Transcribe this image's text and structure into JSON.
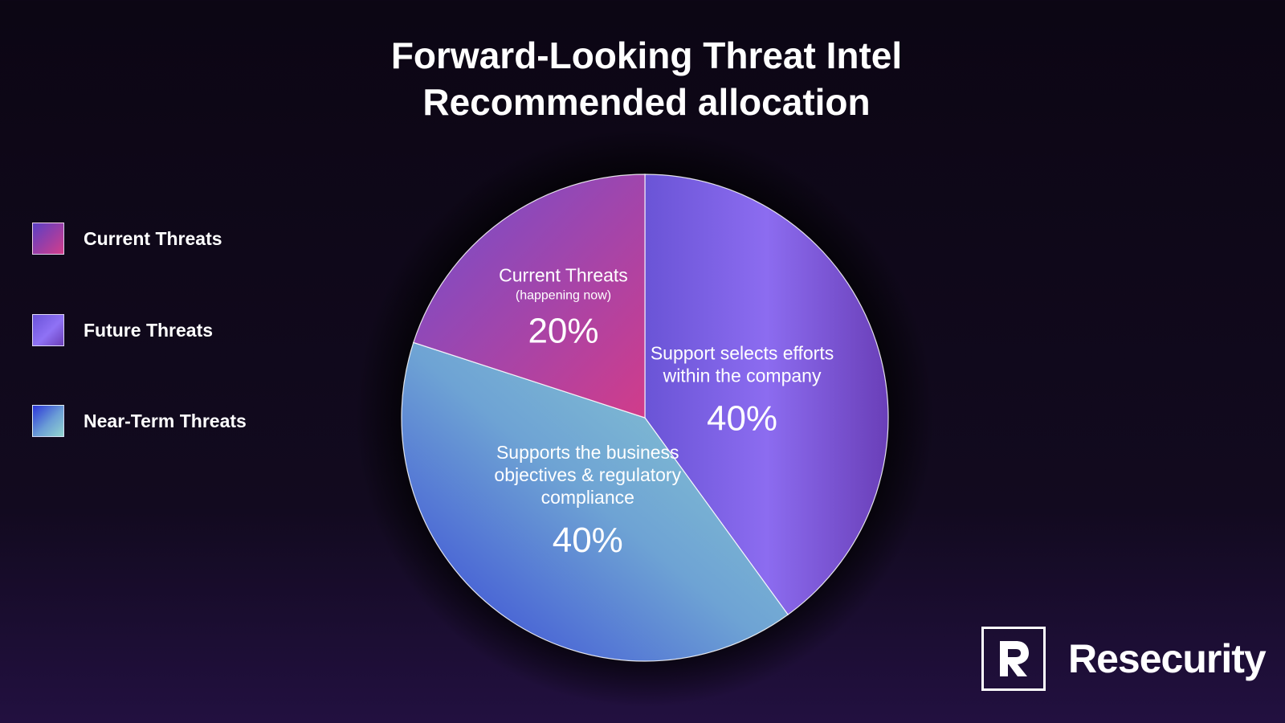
{
  "header": {
    "title_line1": "Forward-Looking Threat Intel",
    "title_line2": "Recommended allocation"
  },
  "legend": [
    {
      "label": "Current Threats"
    },
    {
      "label": "Future Threats"
    },
    {
      "label": "Near-Term Threats"
    }
  ],
  "brand": {
    "name": "Resecurity"
  },
  "chart_data": {
    "type": "pie",
    "title": "Forward-Looking Threat Intel Recommended allocation",
    "legend_position": "left",
    "slices": [
      {
        "legend": "Future Threats",
        "label_lines": [
          "Support selects efforts",
          "within the company"
        ],
        "percent_label": "40%",
        "value": 40,
        "colors": [
          "#6a54d6",
          "#8c6cf0",
          "#6a3fb8"
        ]
      },
      {
        "legend": "Near-Term Threats",
        "label_lines": [
          "Supports the business",
          "objectives & regulatory",
          "compliance"
        ],
        "percent_label": "40%",
        "value": 40,
        "colors": [
          "#3440d6",
          "#6ea3d4",
          "#8fd0d0"
        ]
      },
      {
        "legend": "Current Threats",
        "label_lines": [
          "Current Threats"
        ],
        "sublabel": "(happening now)",
        "percent_label": "20%",
        "value": 20,
        "colors": [
          "#6f4fcf",
          "#d13c8a"
        ]
      }
    ]
  }
}
